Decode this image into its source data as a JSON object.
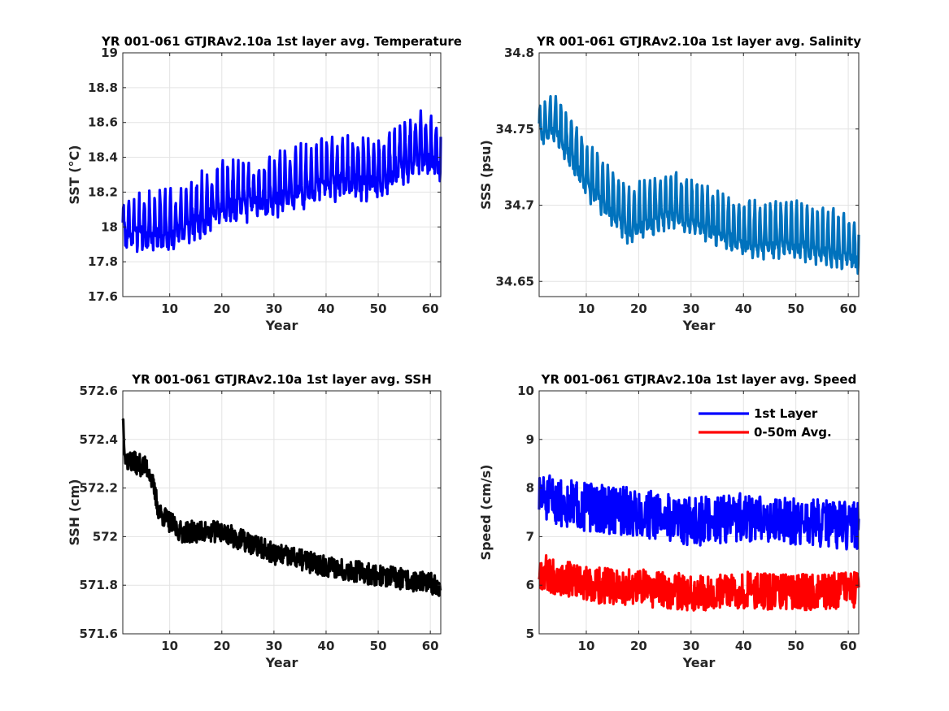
{
  "chart_data": [
    {
      "id": "temperature",
      "type": "line",
      "title": "YR 001-061 GTJRAv2.10a 1st layer avg. Temperature",
      "xlabel": "Year",
      "ylabel": "SST (°C)",
      "xlim": [
        1,
        62
      ],
      "ylim": [
        17.6,
        19
      ],
      "xticks": [
        10,
        20,
        30,
        40,
        50,
        60
      ],
      "yticks": [
        17.6,
        17.8,
        18,
        18.2,
        18.4,
        18.6,
        18.8,
        19
      ],
      "ytick_labels": [
        "17.6",
        "17.8",
        "18",
        "18.2",
        "18.4",
        "18.6",
        "18.8",
        "19"
      ],
      "grid": true,
      "legend": false,
      "series": [
        {
          "color": "#0000FF",
          "model": {
            "kind": "seasonal",
            "start": 18.1,
            "end": 18.35,
            "knots": [
              [
                1,
                18.0
              ],
              [
                10,
                18.0
              ],
              [
                20,
                18.15
              ],
              [
                30,
                18.2
              ],
              [
                40,
                18.3
              ],
              [
                50,
                18.3
              ],
              [
                58,
                18.45
              ],
              [
                62,
                18.4
              ]
            ],
            "amp": 0.24,
            "amp_start": 0.2,
            "noise": 0.06,
            "seed": 11,
            "clip": [
              17.68,
              18.82
            ]
          }
        }
      ]
    },
    {
      "id": "salinity",
      "type": "line",
      "title": "YR 001-061 GTJRAv2.10a 1st layer avg. Salinity",
      "xlabel": "Year",
      "ylabel": "SSS (psu)",
      "xlim": [
        1,
        62
      ],
      "ylim": [
        34.64,
        34.8
      ],
      "xticks": [
        10,
        20,
        30,
        40,
        50,
        60
      ],
      "yticks": [
        34.65,
        34.7,
        34.75,
        34.8
      ],
      "ytick_labels": [
        "34.65",
        "34.7",
        "34.75",
        "34.8"
      ],
      "grid": true,
      "legend": false,
      "series": [
        {
          "color": "#0072BD",
          "model": {
            "kind": "seasonal",
            "start": 34.74,
            "end": 34.665,
            "knots": [
              [
                1,
                34.75
              ],
              [
                4,
                34.755
              ],
              [
                10,
                34.72
              ],
              [
                18,
                34.69
              ],
              [
                26,
                34.7
              ],
              [
                34,
                34.69
              ],
              [
                40,
                34.68
              ],
              [
                50,
                34.68
              ],
              [
                62,
                34.67
              ]
            ],
            "amp": 0.028,
            "amp_start": 0.02,
            "noise": 0.004,
            "seed": 23,
            "clip": [
              34.639,
              34.782
            ]
          }
        }
      ]
    },
    {
      "id": "ssh",
      "type": "line",
      "title": "YR 001-061 GTJRAv2.10a 1st layer avg. SSH",
      "xlabel": "Year",
      "ylabel": "SSH (cm)",
      "xlim": [
        1,
        62
      ],
      "ylim": [
        571.6,
        572.6
      ],
      "xticks": [
        10,
        20,
        30,
        40,
        50,
        60
      ],
      "yticks": [
        571.6,
        571.8,
        572,
        572.2,
        572.4,
        572.6
      ],
      "ytick_labels": [
        "571.6",
        "571.8",
        "572",
        "572.2",
        "572.4",
        "572.6"
      ],
      "grid": true,
      "legend": false,
      "series": [
        {
          "color": "#000000",
          "model": {
            "kind": "noisy",
            "knots": [
              [
                1,
                572.5
              ],
              [
                1.5,
                572.32
              ],
              [
                6,
                572.28
              ],
              [
                8,
                572.1
              ],
              [
                12,
                572.02
              ],
              [
                20,
                572.02
              ],
              [
                30,
                571.93
              ],
              [
                40,
                571.88
              ],
              [
                50,
                571.84
              ],
              [
                62,
                571.8
              ]
            ],
            "noise": 0.045,
            "seed": 37,
            "clip": [
              571.66,
              572.52
            ]
          }
        }
      ]
    },
    {
      "id": "speed",
      "type": "line",
      "title": "YR 001-061 GTJRAv2.10a 1st layer avg. Speed",
      "xlabel": "Year",
      "ylabel": "Speed (cm/s)",
      "xlim": [
        1,
        62
      ],
      "ylim": [
        5,
        10
      ],
      "xticks": [
        10,
        20,
        30,
        40,
        50,
        60
      ],
      "yticks": [
        5,
        6,
        7,
        8,
        9,
        10
      ],
      "ytick_labels": [
        "5",
        "6",
        "7",
        "8",
        "9",
        "10"
      ],
      "grid": true,
      "legend": true,
      "legend_location": "top-right",
      "series": [
        {
          "name": "1st Layer",
          "color": "#0000FF",
          "model": {
            "kind": "noisy",
            "knots": [
              [
                1,
                7.8
              ],
              [
                10,
                7.6
              ],
              [
                20,
                7.5
              ],
              [
                30,
                7.3
              ],
              [
                40,
                7.4
              ],
              [
                50,
                7.3
              ],
              [
                62,
                7.2
              ]
            ],
            "noise": 0.5,
            "seed": 51,
            "clip": [
              6.3,
              9.05
            ]
          }
        },
        {
          "name": "0-50m Avg.",
          "color": "#FF0000",
          "model": {
            "kind": "noisy",
            "knots": [
              [
                1,
                6.3
              ],
              [
                10,
                6.0
              ],
              [
                20,
                5.95
              ],
              [
                30,
                5.85
              ],
              [
                40,
                5.9
              ],
              [
                50,
                5.85
              ],
              [
                62,
                5.9
              ]
            ],
            "noise": 0.38,
            "seed": 67,
            "clip": [
              5.12,
              7.3
            ]
          }
        }
      ]
    }
  ]
}
